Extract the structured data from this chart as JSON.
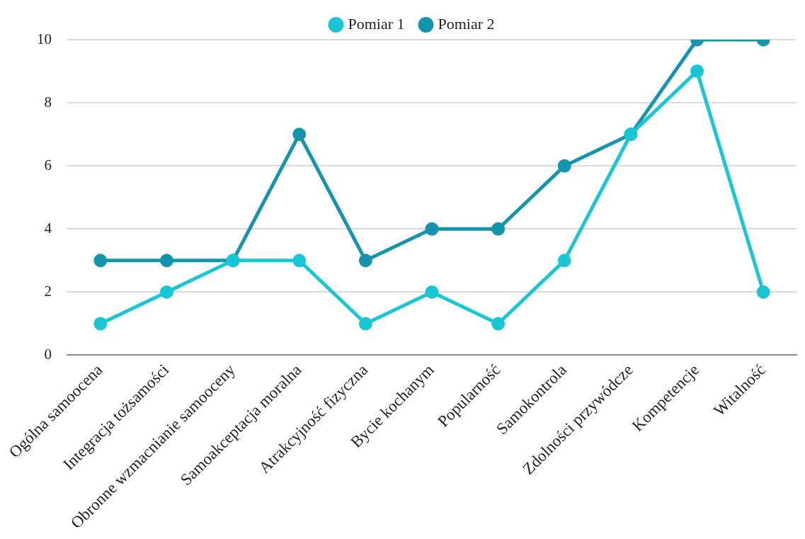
{
  "chart_data": {
    "type": "line",
    "categories": [
      "Ogólna samoocena",
      "Integracja tożsamości",
      "Obronne wzmacnianie samooceny",
      "Samoakceptacja moralna",
      "Atrakcyjność fizyczna",
      "Bycie kochanym",
      "Popularność",
      "Samokontrola",
      "Zdolności przywódcze",
      "Kompetencje",
      "Witalność"
    ],
    "series": [
      {
        "name": "Pomiar 1",
        "color": "#19c6d6",
        "values": [
          1,
          2,
          3,
          3,
          1,
          2,
          1,
          3,
          7,
          9,
          2
        ]
      },
      {
        "name": "Pomiar 2",
        "color": "#1595ad",
        "values": [
          3,
          3,
          3,
          7,
          3,
          4,
          4,
          6,
          7,
          10,
          10
        ]
      }
    ],
    "ylim": [
      0,
      10
    ],
    "yticks": [
      0,
      2,
      4,
      6,
      8,
      10
    ],
    "grid": "y",
    "legend": "top",
    "marker": "circle",
    "line_style": "solid"
  }
}
